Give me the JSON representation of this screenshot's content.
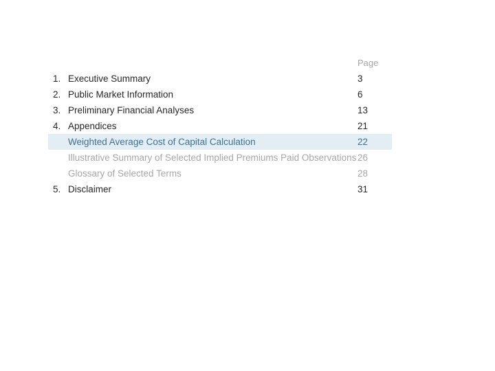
{
  "toc": {
    "page_header": "Page",
    "entries": [
      {
        "num": "1.",
        "title": "Executive Summary",
        "page": "3"
      },
      {
        "num": "2.",
        "title": "Public Market Information",
        "page": "6"
      },
      {
        "num": "3.",
        "title": "Preliminary Financial Analyses",
        "page": "13"
      },
      {
        "num": "4.",
        "title": "Appendices",
        "page": "21"
      },
      {
        "num": "",
        "title": "Weighted Average Cost of Capital Calculation",
        "page": "22"
      },
      {
        "num": "",
        "title": "Illustrative Summary of Selected Implied Premiums Paid Observations",
        "page": "26"
      },
      {
        "num": "",
        "title": "Glossary of Selected Terms",
        "page": "28"
      },
      {
        "num": "5.",
        "title": "Disclaimer",
        "page": "31"
      }
    ]
  },
  "colors": {
    "main_text": "#262626",
    "muted_text": "#a6a6a6",
    "highlight_text": "#3d7094",
    "highlight_bg": "#e3edf4"
  }
}
